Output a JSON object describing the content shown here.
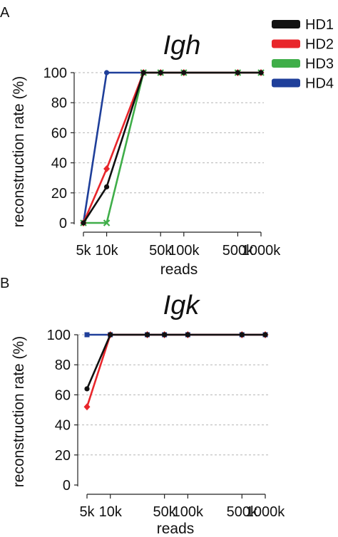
{
  "chart_data": [
    {
      "panel_label": "A",
      "title": "Igh",
      "type": "line",
      "xlabel": "reads",
      "ylabel": "reconstruction rate (%)",
      "ylim": [
        0,
        100
      ],
      "yticks": [
        0,
        20,
        40,
        60,
        80,
        100
      ],
      "x_scale": "log",
      "x_ticks": [
        5000,
        10000,
        50000,
        100000,
        500000,
        1000000
      ],
      "x_tick_labels": [
        "5k",
        "10k",
        "50k",
        "100k",
        "500k",
        "1000k"
      ],
      "grid": "horizontal dashed",
      "legend": "top-right",
      "series": [
        {
          "name": "HD4",
          "color": "#1f3f9a",
          "marker": "circle",
          "x": [
            5000,
            10000,
            30000,
            50000,
            100000,
            500000,
            1000000
          ],
          "y": [
            0,
            100,
            100,
            100,
            100,
            100,
            100
          ]
        },
        {
          "name": "HD3",
          "color": "#3fae49",
          "marker": "x",
          "x": [
            5000,
            10000,
            30000,
            50000,
            100000,
            500000,
            1000000
          ],
          "y": [
            0,
            0,
            100,
            100,
            100,
            100,
            100
          ]
        },
        {
          "name": "HD2",
          "color": "#e8262b",
          "marker": "diamond",
          "x": [
            5000,
            10000,
            30000,
            50000,
            100000,
            500000,
            1000000
          ],
          "y": [
            0,
            36,
            100,
            100,
            100,
            100,
            100
          ]
        },
        {
          "name": "HD1",
          "color": "#111111",
          "marker": "circle",
          "x": [
            5000,
            10000,
            30000,
            50000,
            100000,
            500000,
            1000000
          ],
          "y": [
            0,
            24,
            100,
            100,
            100,
            100,
            100
          ]
        }
      ]
    },
    {
      "panel_label": "B",
      "title": "Igk",
      "type": "line",
      "xlabel": "reads",
      "ylabel": "reconstruction rate (%)",
      "ylim": [
        0,
        100
      ],
      "yticks": [
        0,
        20,
        40,
        60,
        80,
        100
      ],
      "x_scale": "log",
      "x_ticks": [
        5000,
        10000,
        50000,
        100000,
        500000,
        1000000
      ],
      "x_tick_labels": [
        "5k",
        "10k",
        "50k",
        "100k",
        "500k",
        "1000k"
      ],
      "grid": "horizontal dashed",
      "legend": "none",
      "series": [
        {
          "name": "HD4",
          "color": "#1f3f9a",
          "marker": "square",
          "x": [
            5000,
            10000,
            30000,
            50000,
            100000,
            500000,
            1000000
          ],
          "y": [
            100,
            100,
            100,
            100,
            100,
            100,
            100
          ]
        },
        {
          "name": "HD2",
          "color": "#e8262b",
          "marker": "diamond",
          "x": [
            5000,
            10000,
            30000,
            50000,
            100000,
            500000,
            1000000
          ],
          "y": [
            52,
            100,
            100,
            100,
            100,
            100,
            100
          ]
        },
        {
          "name": "HD1",
          "color": "#111111",
          "marker": "circle",
          "x": [
            5000,
            10000,
            30000,
            50000,
            100000,
            500000,
            1000000
          ],
          "y": [
            64,
            100,
            100,
            100,
            100,
            100,
            100
          ]
        }
      ]
    }
  ],
  "legend": {
    "entries": [
      {
        "label": "HD1",
        "color": "#111111"
      },
      {
        "label": "HD2",
        "color": "#e8262b"
      },
      {
        "label": "HD3",
        "color": "#3fae49"
      },
      {
        "label": "HD4",
        "color": "#1f3f9a"
      }
    ]
  }
}
